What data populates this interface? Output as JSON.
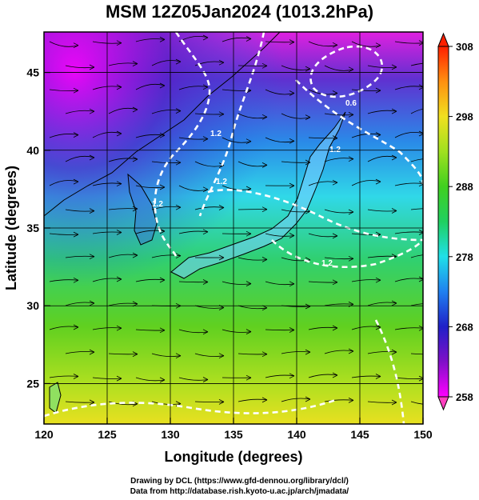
{
  "title": "MSM 12Z05Jan2024 (1013.2hPa)",
  "credits": [
    "Drawing by DCL (https://www.gfd-dennou.org/library/dcl/)",
    "Data from http://database.rish.kyoto-u.ac.jp/arch/jmadata/"
  ],
  "chart_data": {
    "type": "heatmap",
    "title": "MSM 12Z05Jan2024 (1013.2hPa)",
    "xlabel": "Longitude (degrees)",
    "ylabel": "Latitude  (degrees)",
    "xlim": [
      120,
      150
    ],
    "ylim": [
      22.4,
      47.6
    ],
    "xticks": [
      120,
      125,
      130,
      135,
      140,
      145,
      150
    ],
    "yticks": [
      25,
      30,
      35,
      40,
      45
    ],
    "grid": true,
    "colorbar": {
      "min": 258,
      "max": 308,
      "ticks": [
        258,
        268,
        278,
        288,
        298,
        308
      ],
      "colors": [
        "#ff00ff",
        "#2020c8",
        "#20d0ff",
        "#20d020",
        "#e0e020",
        "#ff2000"
      ]
    },
    "contour_labels": [
      "1.2",
      "1.2",
      "1.2",
      "1.2",
      "0.6",
      "1.2"
    ],
    "overlay": "streamlines"
  }
}
